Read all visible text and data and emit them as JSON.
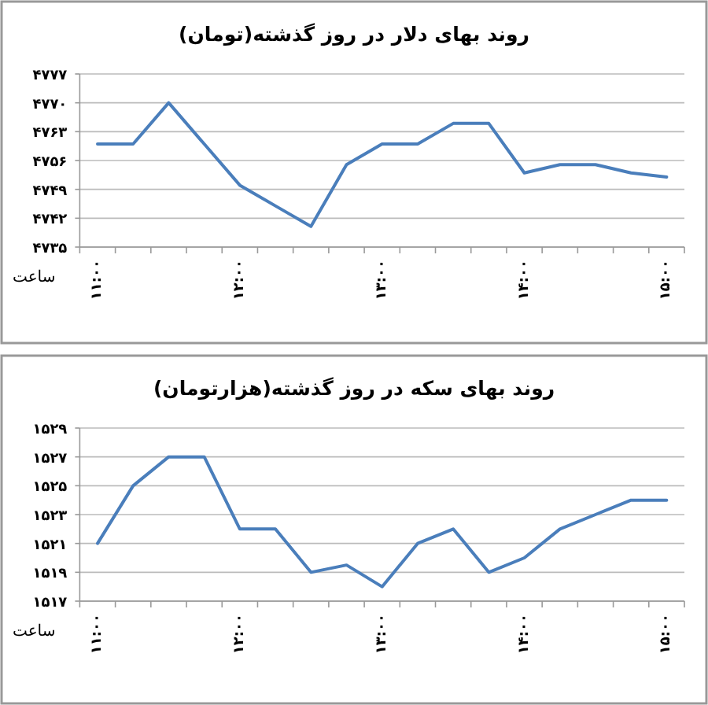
{
  "chart_data": [
    {
      "type": "line",
      "title": "روند بهای دلار در روز گذشته(تومان)",
      "xlabel": "ساعت",
      "color": "#4a7ebb",
      "grid": "y",
      "categories": [
        "۱۱:۰۰",
        null,
        null,
        null,
        "۱۲:۰۰",
        null,
        null,
        null,
        "۱۳:۰۰",
        null,
        null,
        null,
        "۱۴:۰۰",
        null,
        null,
        null,
        "۱۵:۰۰"
      ],
      "values": [
        4760,
        4760,
        4770,
        4760,
        4750,
        4745,
        4740,
        4755,
        4760,
        4760,
        4765,
        4765,
        4753,
        4755,
        4755,
        4753,
        4752
      ],
      "ylim": [
        4735,
        4777
      ],
      "yticks": [
        {
          "value": 4735,
          "label": "۴۷۳۵"
        },
        {
          "value": 4742,
          "label": "۴۷۴۲"
        },
        {
          "value": 4749,
          "label": "۴۷۴۹"
        },
        {
          "value": 4756,
          "label": "۴۷۵۶"
        },
        {
          "value": 4763,
          "label": "۴۷۶۳"
        },
        {
          "value": 4770,
          "label": "۴۷۷۰"
        },
        {
          "value": 4777,
          "label": "۴۷۷۷"
        }
      ]
    },
    {
      "type": "line",
      "title": "روند بهای سکه در روز گذشته(هزارتومان)",
      "xlabel": "ساعت",
      "color": "#4a7ebb",
      "grid": "y",
      "categories": [
        "۱۱:۰۰",
        null,
        null,
        null,
        "۱۲:۰۰",
        null,
        null,
        null,
        "۱۳:۰۰",
        null,
        null,
        null,
        "۱۴:۰۰",
        null,
        null,
        null,
        "۱۵:۰۰"
      ],
      "values": [
        1521,
        1525,
        1527,
        1527,
        1522,
        1522,
        1519,
        1519.5,
        1518,
        1521,
        1522,
        1519,
        1520,
        1522,
        1523,
        1524,
        1524
      ],
      "ylim": [
        1517,
        1529
      ],
      "yticks": [
        {
          "value": 1517,
          "label": "۱۵۱۷"
        },
        {
          "value": 1519,
          "label": "۱۵۱۹"
        },
        {
          "value": 1521,
          "label": "۱۵۲۱"
        },
        {
          "value": 1523,
          "label": "۱۵۲۳"
        },
        {
          "value": 1525,
          "label": "۱۵۲۵"
        },
        {
          "value": 1527,
          "label": "۱۵۲۷"
        },
        {
          "value": 1529,
          "label": "۱۵۲۹"
        }
      ]
    }
  ]
}
